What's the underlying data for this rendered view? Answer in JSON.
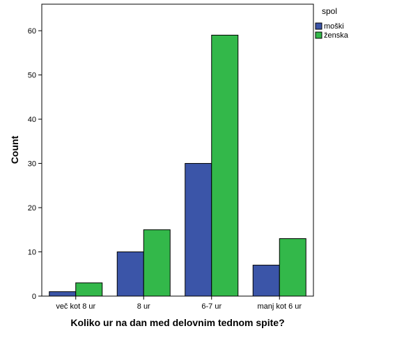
{
  "chart_data": {
    "type": "bar",
    "title": "",
    "xlabel": "Koliko ur na dan med delovnim tednom spite?",
    "ylabel": "Count",
    "categories": [
      "več kot 8 ur",
      "8 ur",
      "6-7 ur",
      "manj kot 6 ur"
    ],
    "series": [
      {
        "name": "moški",
        "values": [
          1,
          10,
          30,
          7
        ],
        "color": "#3b55a8"
      },
      {
        "name": "ženska",
        "values": [
          3,
          15,
          59,
          13
        ],
        "color": "#33b84a"
      }
    ],
    "ylim": [
      0,
      66
    ],
    "yticks": [
      0,
      10,
      20,
      30,
      40,
      50,
      60
    ],
    "grid": false,
    "legend": {
      "title": "spol",
      "position": "right"
    }
  }
}
